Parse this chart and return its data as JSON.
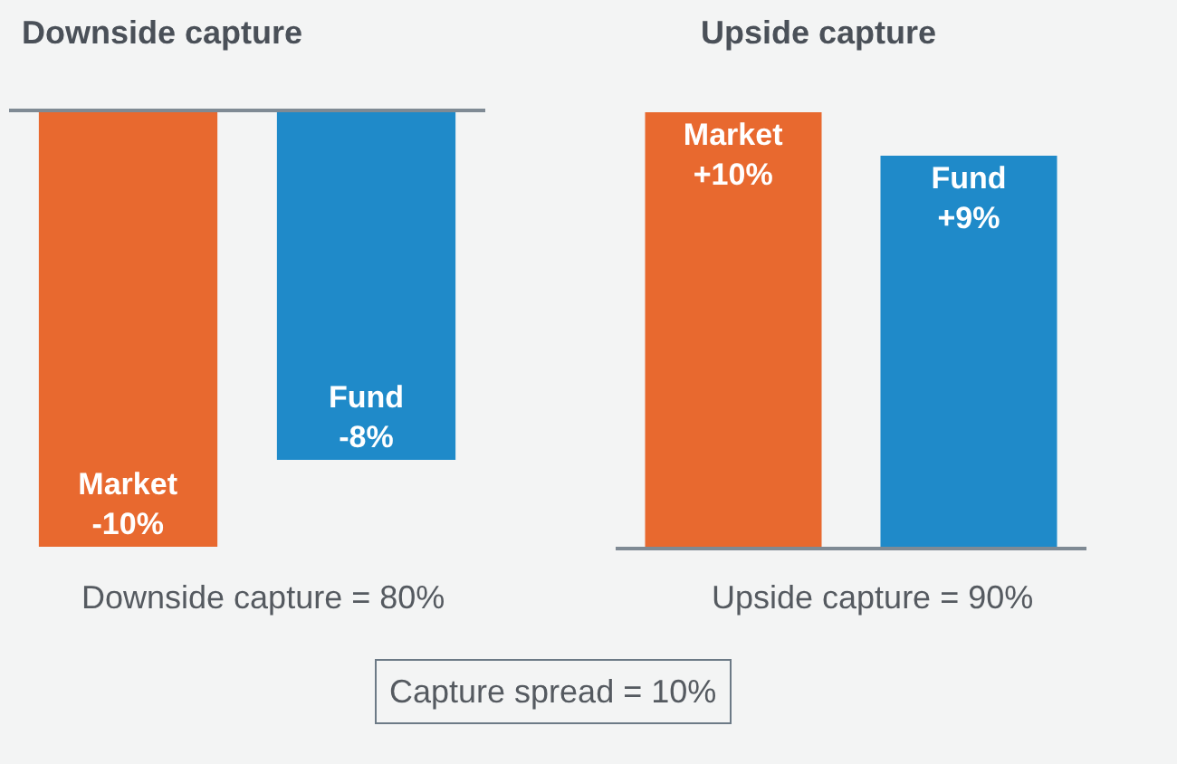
{
  "chart_data": [
    {
      "type": "bar",
      "title": "Downside capture",
      "categories": [
        null
      ],
      "series": [
        {
          "name": "Market",
          "color": "#e8692f",
          "values": [
            -10
          ],
          "value_labels": [
            "-10%"
          ]
        },
        {
          "name": "Fund",
          "color": "#1f8ac9",
          "values": [
            -8
          ],
          "value_labels": [
            "-8%"
          ]
        }
      ],
      "ylim": [
        -10,
        0
      ],
      "tick_labels": false,
      "annotations": [
        "Downside capture = 80%"
      ]
    },
    {
      "type": "bar",
      "title": "Upside capture",
      "categories": [
        null
      ],
      "series": [
        {
          "name": "Market",
          "color": "#e8692f",
          "values": [
            10
          ],
          "value_labels": [
            "+10%"
          ]
        },
        {
          "name": "Fund",
          "color": "#1f8ac9",
          "values": [
            9
          ],
          "value_labels": [
            "+9%"
          ]
        }
      ],
      "ylim": [
        0,
        10
      ],
      "tick_labels": false,
      "annotations": [
        "Upside capture = 90%"
      ]
    },
    {
      "type": "other",
      "annotations": [
        "Capture spread = 10%"
      ]
    }
  ]
}
